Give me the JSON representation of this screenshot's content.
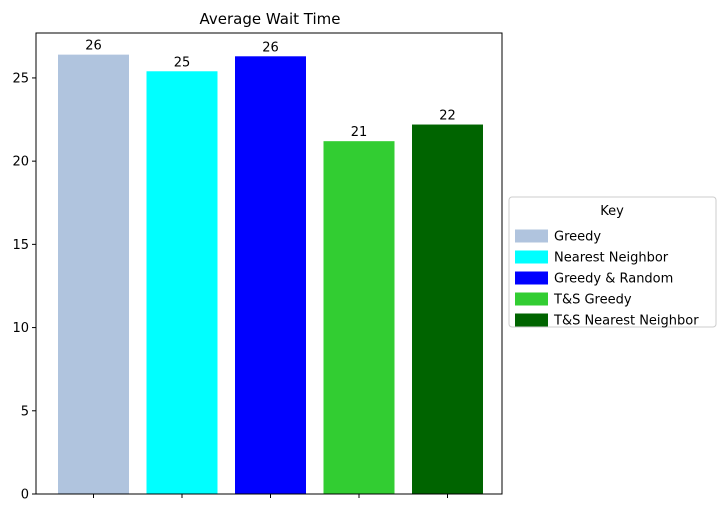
{
  "chart_data": {
    "type": "bar",
    "title": "Average Wait Time",
    "xlabel": "",
    "ylabel": "",
    "ylim": [
      0,
      27.7
    ],
    "yticks": [
      0,
      5,
      10,
      15,
      20,
      25
    ],
    "grid": false,
    "categories": [
      "Greedy",
      "Nearest Neighbor",
      "Greedy & Random",
      "T&S Greedy",
      "T&S Nearest Neighbor"
    ],
    "values": [
      26.4,
      25.4,
      26.3,
      21.2,
      22.2
    ],
    "data_labels": [
      "26",
      "25",
      "26",
      "21",
      "22"
    ],
    "colors": [
      "#b0c4de",
      "#00ffff",
      "#0000ff",
      "#32cd32",
      "#006400"
    ],
    "legend": {
      "title": "Key",
      "placement": "center-right outside",
      "entries": [
        "Greedy",
        "Nearest Neighbor",
        "Greedy & Random",
        "T&S Greedy",
        "T&S Nearest Neighbor"
      ]
    }
  }
}
